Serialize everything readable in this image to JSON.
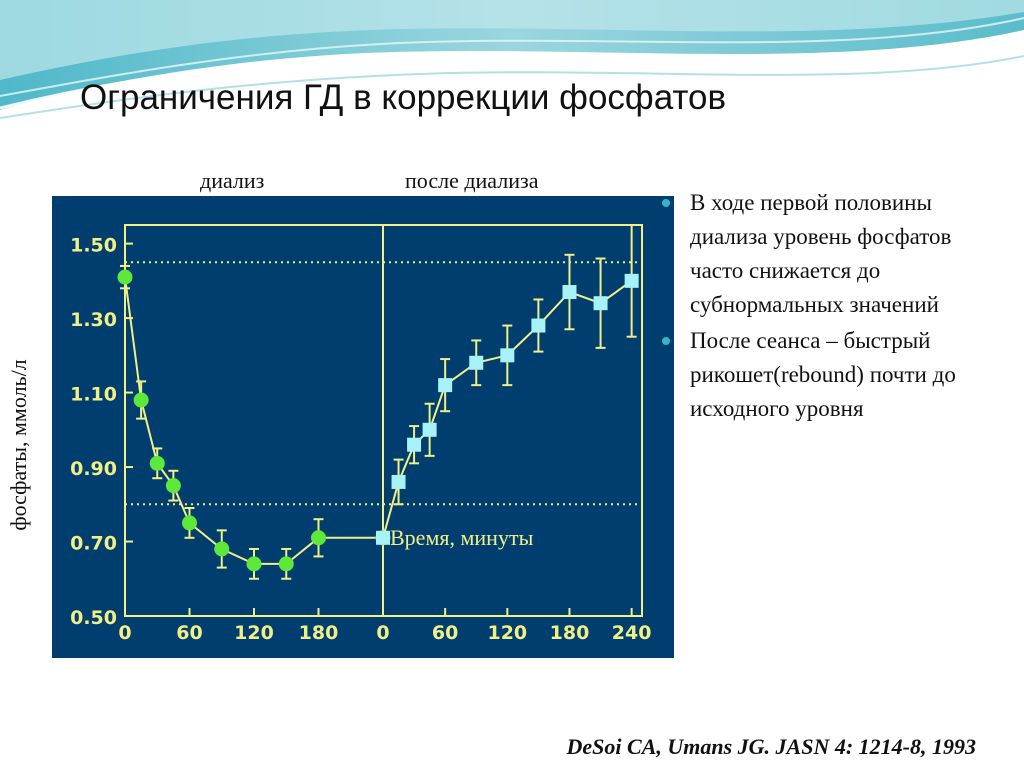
{
  "title": "Ограничения ГД в коррекции фосфатов",
  "captions": {
    "dialysis": "диализ",
    "after": "после диализа"
  },
  "bullets": [
    "В ходе первой половины диализа уровень фосфатов часто снижается до субнормальных значений",
    "После сеанса – быстрый рикошет(rebound) почти до исходного уровня"
  ],
  "citation": "DeSoi CA, Umans JG. JASN 4: 1214-8, 1993",
  "colors": {
    "chart_bg": "#003e6f",
    "axis": "#f2ef86",
    "dialysis_marker": "#5ee83a",
    "after_marker": "#a6f2f8",
    "bullet": "#35b5c8"
  },
  "chart_data": {
    "type": "line",
    "ylabel": "фосфаты, ммоль/л",
    "xlabel": "Время, минуты",
    "yticks": [
      0.5,
      0.7,
      0.9,
      1.1,
      1.3,
      1.5
    ],
    "ytick_labels": [
      "0.50",
      "0.70",
      "0.90",
      "1.10",
      "1.30",
      "1.50"
    ],
    "ylim": [
      0.5,
      1.55
    ],
    "reference_lines": [
      1.45,
      0.8
    ],
    "panels": [
      {
        "name": "диализ",
        "xlim": [
          0,
          240
        ],
        "xticks": [
          0,
          60,
          120,
          180
        ],
        "marker": "circle",
        "x": [
          0,
          15,
          30,
          45,
          60,
          90,
          120,
          150,
          180,
          240
        ],
        "y": [
          1.41,
          1.08,
          0.91,
          0.85,
          0.75,
          0.68,
          0.64,
          0.64,
          0.71,
          0.71
        ],
        "err": [
          0.03,
          0.05,
          0.04,
          0.04,
          0.04,
          0.05,
          0.04,
          0.04,
          0.05,
          0
        ]
      },
      {
        "name": "после диализа",
        "xlim": [
          0,
          250
        ],
        "xticks": [
          0,
          60,
          120,
          180,
          240
        ],
        "marker": "square",
        "x": [
          0,
          15,
          30,
          45,
          60,
          90,
          120,
          150,
          180,
          210,
          240
        ],
        "y": [
          0.71,
          0.86,
          0.96,
          1.0,
          1.12,
          1.18,
          1.2,
          1.28,
          1.37,
          1.34,
          1.4
        ],
        "err": [
          0,
          0.06,
          0.05,
          0.07,
          0.07,
          0.06,
          0.08,
          0.07,
          0.1,
          0.12,
          0.15
        ]
      }
    ]
  }
}
